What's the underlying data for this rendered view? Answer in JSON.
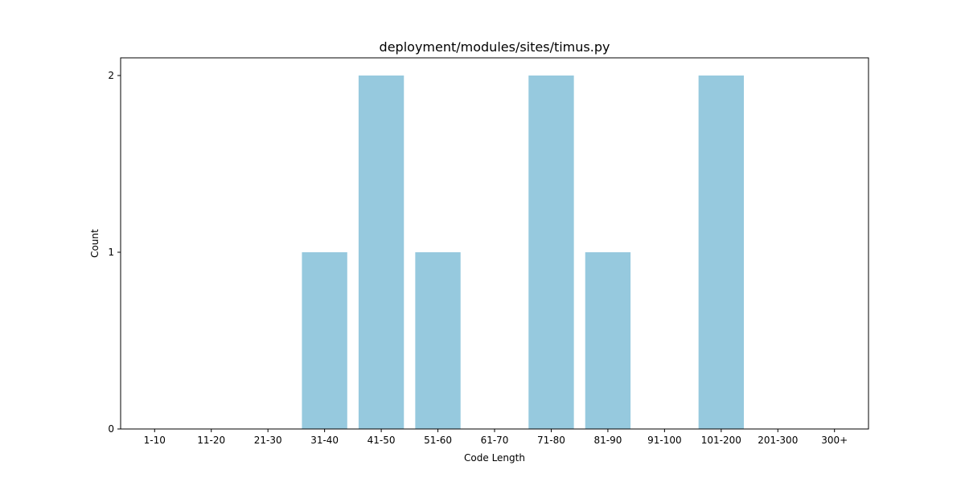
{
  "chart_data": {
    "type": "bar",
    "title": "deployment/modules/sites/timus.py",
    "xlabel": "Code Length",
    "ylabel": "Count",
    "categories": [
      "1-10",
      "11-20",
      "21-30",
      "31-40",
      "41-50",
      "51-60",
      "61-70",
      "71-80",
      "81-90",
      "91-100",
      "101-200",
      "201-300",
      "300+"
    ],
    "values": [
      0,
      0,
      0,
      1,
      2,
      1,
      0,
      2,
      1,
      0,
      2,
      0,
      0
    ],
    "ylim": [
      0,
      2.1
    ],
    "yticks": [
      "0",
      "1",
      "2"
    ],
    "bar_color": "#96c9de",
    "grid": false,
    "legend": "none"
  }
}
